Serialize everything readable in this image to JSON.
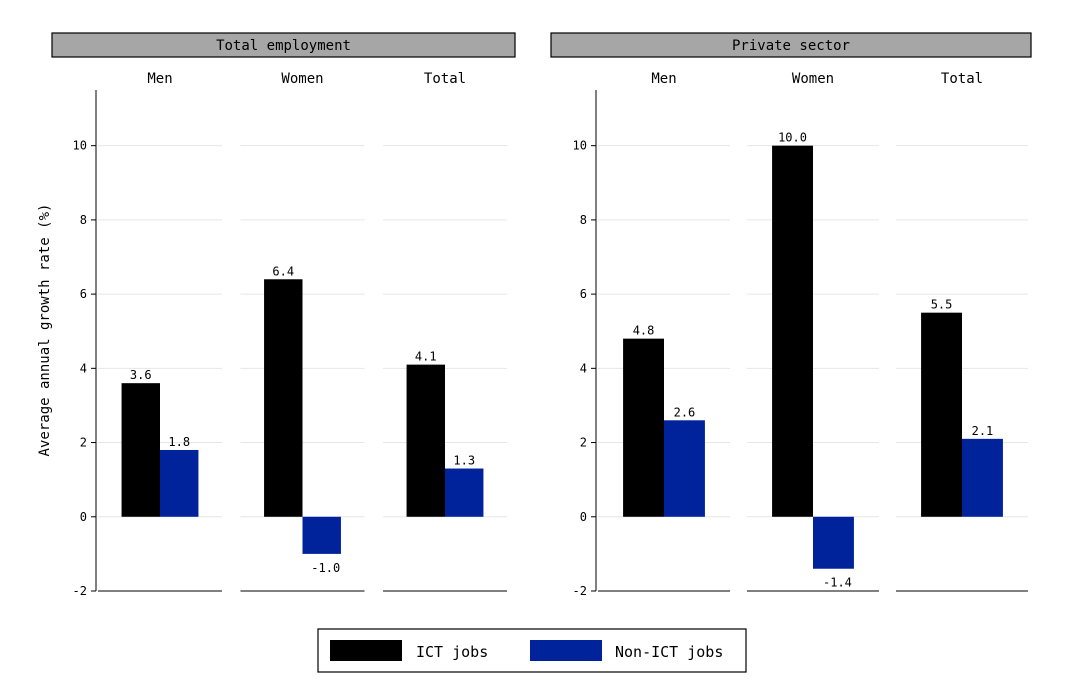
{
  "chart_data": {
    "type": "bar",
    "ylabel": "Average annual growth rate (%)",
    "ylim": [
      -2,
      11.5
    ],
    "yticks": [
      -2,
      0,
      2,
      4,
      6,
      8,
      10
    ],
    "grid": true,
    "legend_position": "bottom",
    "colors": {
      "ICT jobs": "#000000",
      "Non-ICT jobs": "#00229a"
    },
    "legend": [
      "ICT jobs",
      "Non-ICT jobs"
    ],
    "panels": [
      {
        "title": "Total employment",
        "groups": [
          {
            "name": "Men",
            "values": {
              "ICT jobs": 3.6,
              "Non-ICT jobs": 1.8
            },
            "labels": {
              "ICT jobs": "3.6",
              "Non-ICT jobs": "1.8"
            }
          },
          {
            "name": "Women",
            "values": {
              "ICT jobs": 6.4,
              "Non-ICT jobs": -1.0
            },
            "labels": {
              "ICT jobs": "6.4",
              "Non-ICT jobs": "-1.0"
            }
          },
          {
            "name": "Total",
            "values": {
              "ICT jobs": 4.1,
              "Non-ICT jobs": 1.3
            },
            "labels": {
              "ICT jobs": "4.1",
              "Non-ICT jobs": "1.3"
            }
          }
        ]
      },
      {
        "title": "Private sector",
        "groups": [
          {
            "name": "Men",
            "values": {
              "ICT jobs": 4.8,
              "Non-ICT jobs": 2.6
            },
            "labels": {
              "ICT jobs": "4.8",
              "Non-ICT jobs": "2.6"
            }
          },
          {
            "name": "Women",
            "values": {
              "ICT jobs": 10.0,
              "Non-ICT jobs": -1.4
            },
            "labels": {
              "ICT jobs": "10.0",
              "Non-ICT jobs": "-1.4"
            }
          },
          {
            "name": "Total",
            "values": {
              "ICT jobs": 5.5,
              "Non-ICT jobs": 2.1
            },
            "labels": {
              "ICT jobs": "5.5",
              "Non-ICT jobs": "2.1"
            }
          }
        ]
      }
    ]
  }
}
